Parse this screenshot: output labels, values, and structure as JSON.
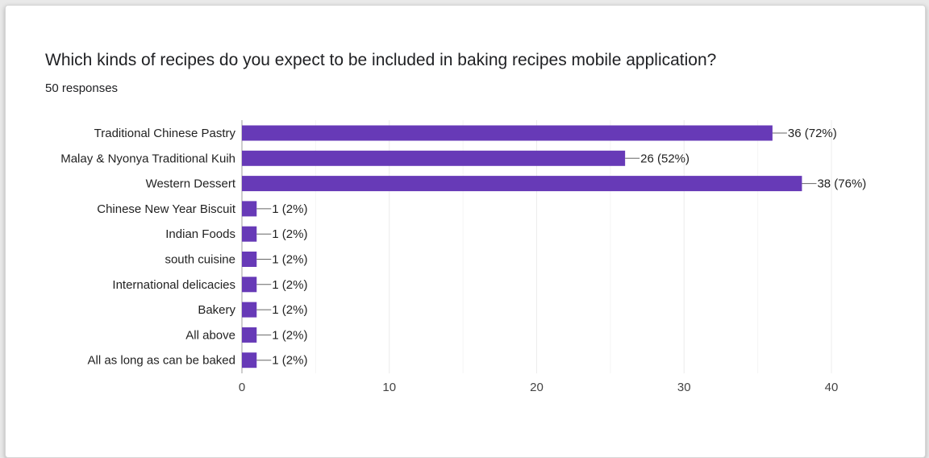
{
  "question": {
    "title": "Which kinds of recipes do you expect to be included in baking recipes mobile application?",
    "responses": "50 responses"
  },
  "colors": {
    "bar": "#673ab7",
    "grid": "#ececec",
    "axis": "#9e9e9e",
    "leader": "#666666"
  },
  "chart_data": {
    "type": "bar",
    "orientation": "horizontal",
    "categories": [
      "Traditional Chinese Pastry",
      "Malay & Nyonya Traditional Kuih",
      "Western Dessert",
      "Chinese New Year Biscuit",
      "Indian Foods",
      "south cuisine",
      "International delicacies",
      "Bakery",
      "All above",
      "All as long as can be baked"
    ],
    "values": [
      36,
      26,
      38,
      1,
      1,
      1,
      1,
      1,
      1,
      1
    ],
    "data_labels": [
      "36 (72%)",
      "26 (52%)",
      "38 (76%)",
      "1 (2%)",
      "1 (2%)",
      "1 (2%)",
      "1 (2%)",
      "1 (2%)",
      "1 (2%)",
      "1 (2%)"
    ],
    "xlim": [
      0,
      40
    ],
    "xticks": [
      0,
      10,
      20,
      30,
      40
    ],
    "grid": true,
    "legend": "none"
  }
}
